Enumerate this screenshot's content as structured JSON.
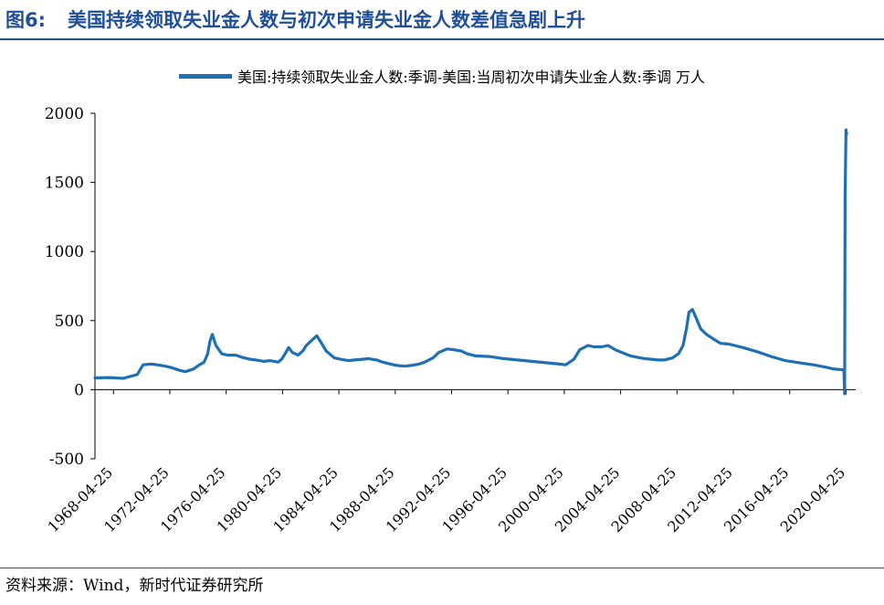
{
  "figure": {
    "number": "图6:",
    "title": "美国持续领取失业金人数与初次申请失业金人数差值急剧上升",
    "source": "资料来源：Wind，新时代证券研究所"
  },
  "colors": {
    "title": "#1f4e9a",
    "series": "#1f6fb5",
    "axis": "#000000"
  },
  "chart_data": {
    "type": "line",
    "legend_position": "top-center",
    "grid": false,
    "ylim": [
      -500,
      2000
    ],
    "y_ticks": [
      -500,
      0,
      500,
      1000,
      1500,
      2000
    ],
    "x_ticks": [
      "1968-04-25",
      "1972-04-25",
      "1976-04-25",
      "1980-04-25",
      "1984-04-25",
      "1988-04-25",
      "1992-04-25",
      "1996-04-25",
      "2000-04-25",
      "2004-04-25",
      "2008-04-25",
      "2012-04-25",
      "2016-04-25",
      "2020-04-25"
    ],
    "series": [
      {
        "name": "美国:持续领取失业金人数:季调-美国:当周初次申请失业金人数:季调 万人",
        "x": [
          "1967-01-01",
          "1968-01-01",
          "1969-01-01",
          "1970-01-01",
          "1970-06-01",
          "1971-01-01",
          "1971-06-01",
          "1972-01-01",
          "1972-06-01",
          "1973-01-01",
          "1973-06-01",
          "1974-01-01",
          "1974-06-01",
          "1974-10-01",
          "1975-01-01",
          "1975-03-01",
          "1975-05-01",
          "1975-08-01",
          "1976-01-01",
          "1976-06-01",
          "1977-01-01",
          "1977-06-01",
          "1978-01-01",
          "1978-06-01",
          "1979-01-01",
          "1979-06-01",
          "1980-01-01",
          "1980-04-01",
          "1980-07-01",
          "1980-10-01",
          "1981-01-01",
          "1981-06-01",
          "1981-10-01",
          "1982-01-01",
          "1982-06-01",
          "1982-10-01",
          "1983-01-01",
          "1983-06-01",
          "1984-01-01",
          "1984-06-01",
          "1985-01-01",
          "1985-06-01",
          "1986-01-01",
          "1986-06-01",
          "1987-01-01",
          "1987-06-01",
          "1988-01-01",
          "1988-06-01",
          "1989-01-01",
          "1989-06-01",
          "1990-01-01",
          "1990-06-01",
          "1991-01-01",
          "1991-06-01",
          "1992-01-01",
          "1992-06-01",
          "1993-01-01",
          "1993-06-01",
          "1994-01-01",
          "1995-01-01",
          "1996-01-01",
          "1997-01-01",
          "1998-01-01",
          "1999-01-01",
          "2000-01-01",
          "2000-06-01",
          "2001-01-01",
          "2001-06-01",
          "2002-01-01",
          "2002-06-01",
          "2003-01-01",
          "2003-06-01",
          "2004-01-01",
          "2005-01-01",
          "2006-01-01",
          "2007-01-01",
          "2007-06-01",
          "2008-01-01",
          "2008-06-01",
          "2008-10-01",
          "2009-01-01",
          "2009-03-01",
          "2009-06-01",
          "2009-09-01",
          "2010-01-01",
          "2010-06-01",
          "2011-01-01",
          "2011-06-01",
          "2012-01-01",
          "2013-01-01",
          "2014-01-01",
          "2015-01-01",
          "2016-01-01",
          "2017-01-01",
          "2018-01-01",
          "2019-01-01",
          "2019-06-01",
          "2020-01-01",
          "2020-03-01",
          "2020-03-20",
          "2020-04-01",
          "2020-04-25",
          "2020-05-10"
        ],
        "y": [
          85,
          88,
          82,
          110,
          180,
          185,
          180,
          170,
          160,
          140,
          130,
          150,
          180,
          200,
          260,
          350,
          400,
          320,
          260,
          250,
          250,
          235,
          220,
          215,
          205,
          210,
          200,
          220,
          260,
          305,
          270,
          250,
          280,
          320,
          360,
          390,
          350,
          280,
          230,
          220,
          210,
          215,
          220,
          225,
          215,
          200,
          185,
          175,
          170,
          175,
          185,
          200,
          230,
          270,
          295,
          290,
          280,
          260,
          245,
          240,
          225,
          215,
          205,
          195,
          185,
          180,
          220,
          290,
          320,
          310,
          310,
          320,
          285,
          245,
          225,
          215,
          215,
          230,
          260,
          320,
          450,
          560,
          580,
          520,
          440,
          400,
          360,
          335,
          330,
          305,
          275,
          240,
          210,
          195,
          180,
          160,
          150,
          145,
          145,
          -30,
          1400,
          1880,
          1850
        ]
      }
    ]
  }
}
